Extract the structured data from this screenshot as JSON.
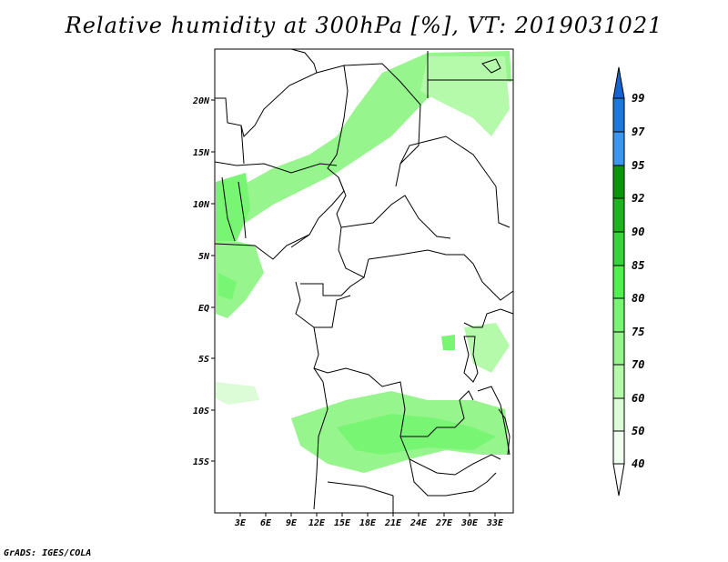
{
  "title": "Relative humidity at 300hPa [%], VT: 2019031021",
  "credit": "GrADS: IGES/COLA",
  "map": {
    "lat_labels": [
      "20N",
      "15N",
      "10N",
      "5N",
      "EQ",
      "5S",
      "10S",
      "15S"
    ],
    "lon_labels": [
      "3E",
      "6E",
      "9E",
      "12E",
      "15E",
      "18E",
      "21E",
      "24E",
      "27E",
      "30E",
      "33E"
    ]
  },
  "colorbar": {
    "labels": [
      "99",
      "97",
      "95",
      "92",
      "90",
      "85",
      "80",
      "75",
      "70",
      "60",
      "50",
      "40"
    ],
    "colors": [
      "#1464d2",
      "#1e78dc",
      "#3c96f0",
      "#0a960a",
      "#1eb41e",
      "#37d23c",
      "#50f050",
      "#78f573",
      "#96f58c",
      "#b4faaa",
      "#dcfcd8",
      "#f0fff0",
      "#ffffff"
    ]
  }
}
